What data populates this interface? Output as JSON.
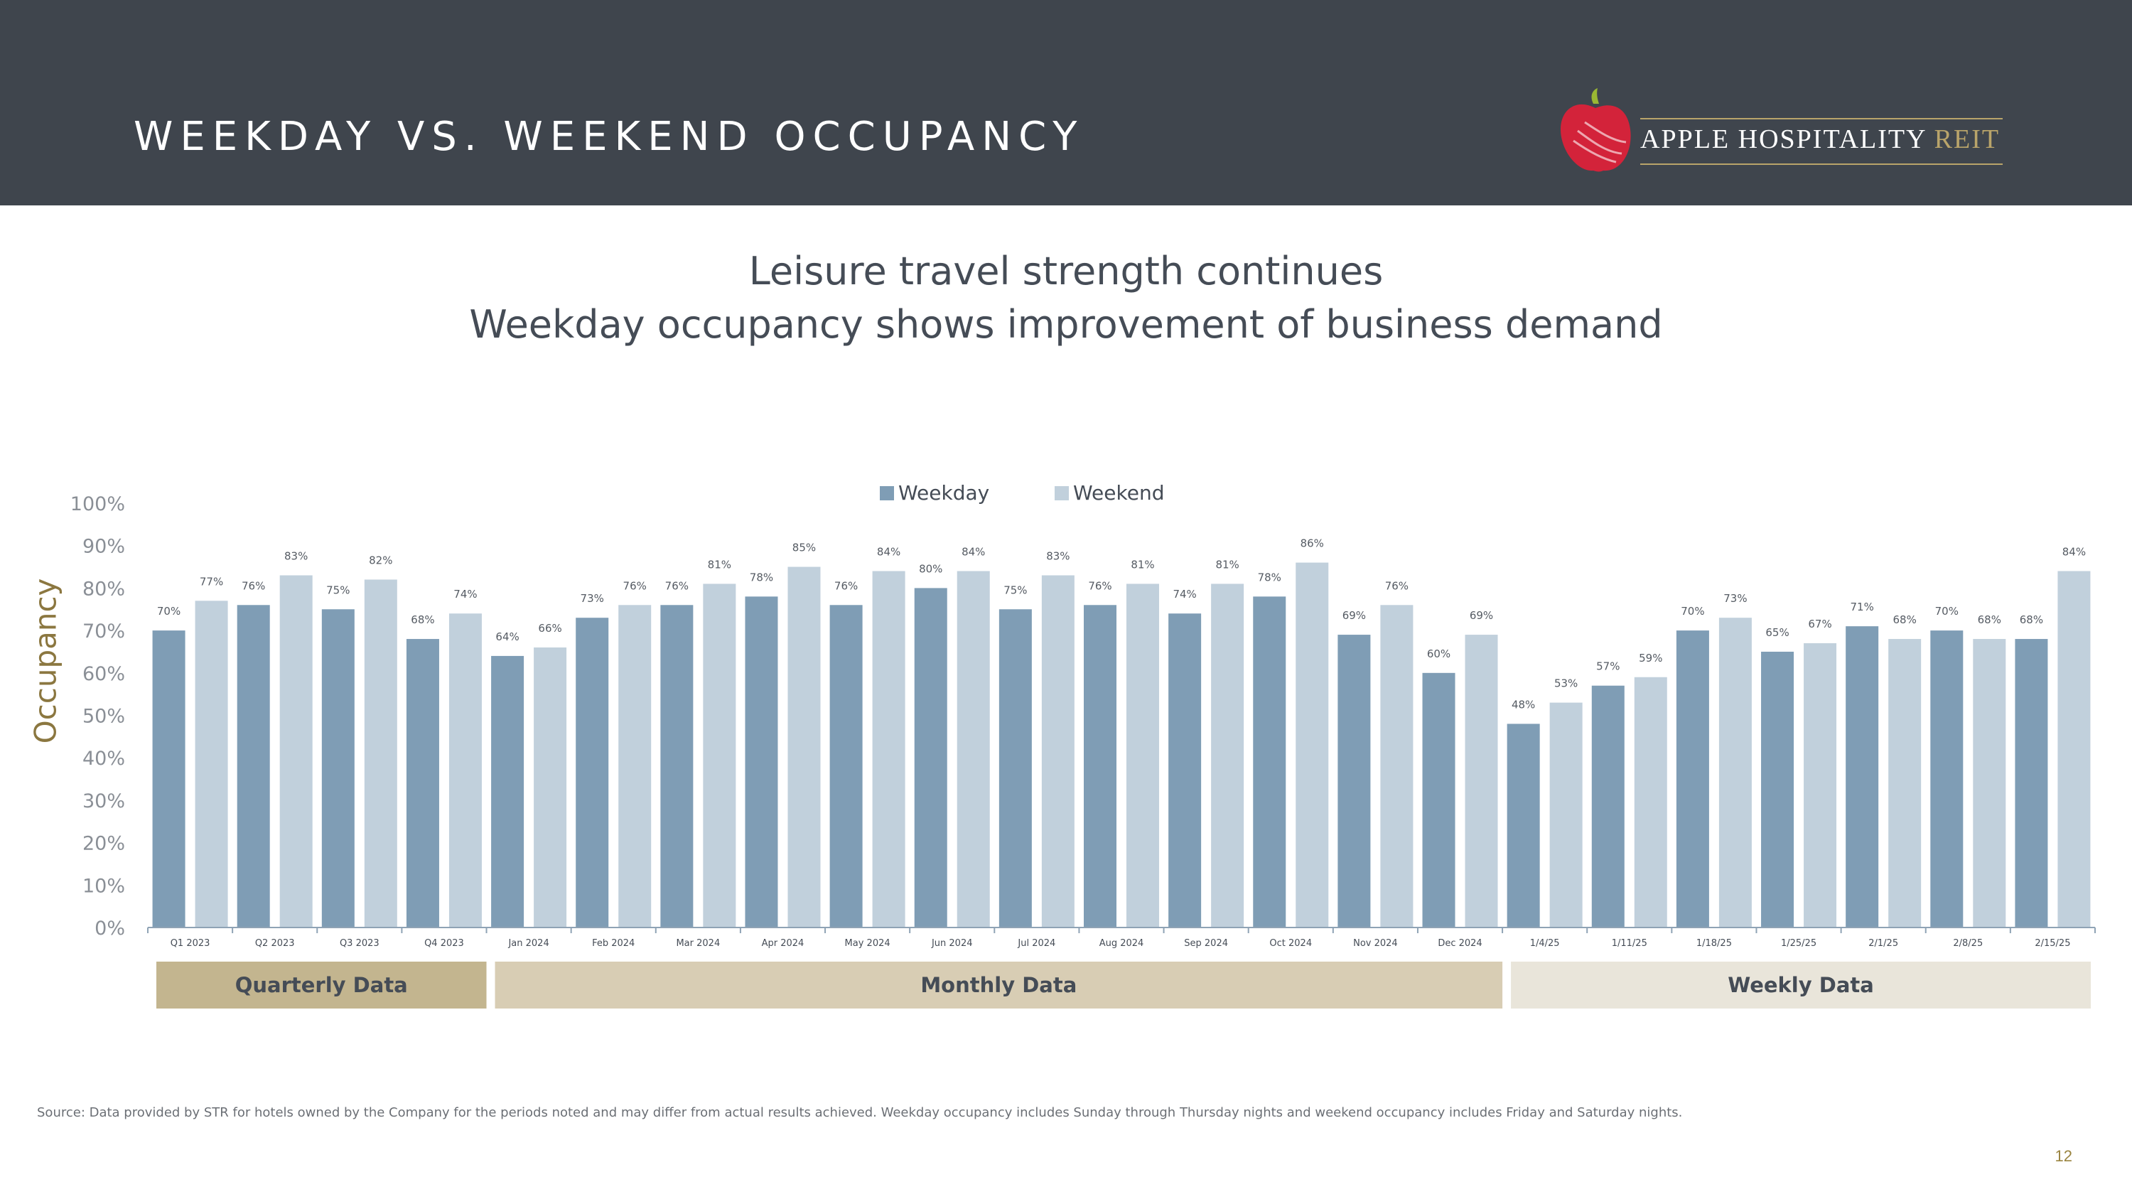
{
  "header": {
    "title": "WEEKDAY VS. WEEKEND OCCUPANCY",
    "logo_name": "APPLE HOSPITALITY",
    "logo_suffix": "REIT"
  },
  "subtitles": [
    "Leisure travel strength continues",
    "Weekday occupancy shows improvement of business demand"
  ],
  "chart_data": {
    "type": "bar",
    "ylabel": "Occupancy",
    "ylim": [
      0,
      100
    ],
    "yticks": [
      "0%",
      "10%",
      "20%",
      "30%",
      "40%",
      "50%",
      "60%",
      "70%",
      "80%",
      "90%",
      "100%"
    ],
    "legend_position": "top-center",
    "categories": [
      "Q1 2023",
      "Q2 2023",
      "Q3 2023",
      "Q4 2023",
      "Jan 2024",
      "Feb 2024",
      "Mar 2024",
      "Apr 2024",
      "May 2024",
      "Jun 2024",
      "Jul 2024",
      "Aug 2024",
      "Sep 2024",
      "Oct 2024",
      "Nov 2024",
      "Dec 2024",
      "1/4/25",
      "1/11/25",
      "1/18/25",
      "1/25/25",
      "2/1/25",
      "2/8/25",
      "2/15/25"
    ],
    "series": [
      {
        "name": "Weekday",
        "color": "#7f9db5",
        "values": [
          70,
          76,
          75,
          68,
          64,
          73,
          76,
          78,
          76,
          80,
          75,
          76,
          74,
          78,
          69,
          60,
          48,
          57,
          70,
          65,
          71,
          70,
          68
        ]
      },
      {
        "name": "Weekend",
        "color": "#c1d0dc",
        "values": [
          77,
          83,
          82,
          74,
          66,
          76,
          81,
          85,
          84,
          84,
          83,
          81,
          81,
          86,
          76,
          69,
          53,
          59,
          73,
          67,
          68,
          68,
          84
        ]
      }
    ],
    "groups": [
      {
        "label": "Quarterly Data",
        "start": 0,
        "end": 3,
        "color": "#c3b58f"
      },
      {
        "label": "Monthly Data",
        "start": 4,
        "end": 15,
        "color": "#d8cdb4"
      },
      {
        "label": "Weekly Data",
        "start": 16,
        "end": 22,
        "color": "#e9e5da"
      }
    ]
  },
  "footer": {
    "source": "Source:  Data provided by STR for hotels owned by the Company for the periods noted and may differ from actual results achieved. Weekday occupancy includes Sunday through Thursday nights and weekend occupancy includes Friday and Saturday nights.",
    "page_number": "12"
  }
}
